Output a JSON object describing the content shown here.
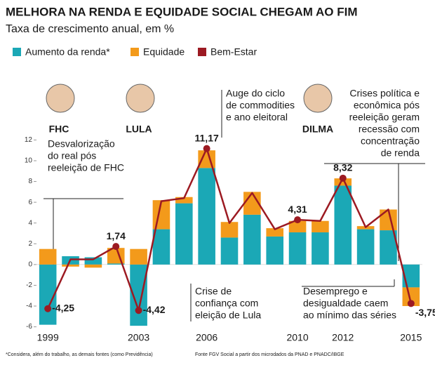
{
  "chart_data": {
    "type": "bar",
    "title": "MELHORA NA RENDA E EQUIDADE SOCIAL CHEGAM AO FIM",
    "subtitle": "Taxa de crescimento anual, em %",
    "categories": [
      "1999",
      null,
      null,
      null,
      "2003",
      null,
      null,
      "2006",
      null,
      null,
      null,
      "2010",
      null,
      "2012",
      null,
      null,
      "2015"
    ],
    "series": [
      {
        "name": "Aumento da renda*",
        "color": "#1ba8b6",
        "values": [
          -5.8,
          0.8,
          0.7,
          0.1,
          -5.9,
          3.4,
          5.9,
          9.3,
          2.6,
          4.8,
          2.7,
          3.1,
          3.1,
          7.6,
          3.4,
          3.3,
          -2.2
        ]
      },
      {
        "name": "Equidade",
        "color": "#f39a1b",
        "values": [
          1.5,
          -0.2,
          -0.3,
          1.5,
          1.5,
          2.8,
          0.6,
          1.7,
          1.5,
          2.2,
          0.8,
          1.1,
          1.1,
          0.7,
          0.3,
          2.0,
          -1.8
        ]
      },
      {
        "name": "Bem-Estar",
        "color": "#9c1a22",
        "type": "line",
        "values": [
          -4.25,
          0.5,
          0.5,
          1.74,
          -4.42,
          6.1,
          6.4,
          11.17,
          4.0,
          6.9,
          3.4,
          4.31,
          4.2,
          8.32,
          3.6,
          5.3,
          -3.75
        ],
        "value_labels": [
          "-4,25",
          null,
          null,
          "1,74",
          "-4,42",
          null,
          null,
          "11,17",
          null,
          null,
          null,
          "4,31",
          null,
          "8,32",
          null,
          null,
          "-3,75"
        ]
      }
    ],
    "ylim": [
      -6.5,
      12.5
    ],
    "yticks": [
      -6,
      -4,
      -2,
      0,
      2,
      4,
      6,
      8,
      10,
      12
    ],
    "presidents": [
      "FHC",
      "LULA",
      "DILMA"
    ],
    "annotations": [
      [
        "Desvalorização",
        "do real pós",
        "reeleição de FHC"
      ],
      [
        "Auge do ciclo",
        "de commodities",
        "e ano eleitoral"
      ],
      [
        "Crises política e",
        "econômica pós",
        "reeleição geram",
        "recessão com",
        "concentração",
        "de renda"
      ],
      [
        "Crise de",
        "confiança com",
        "eleição de Lula"
      ],
      [
        "Desemprego e",
        "desigualdade caem",
        "ao mínimo das séries"
      ]
    ],
    "footnote": "*Considera, além do trabalho, as demais fontes (como Previdência)",
    "source": "Fonte FGV Social a partir dos microdados da PNAD e PNADC/IBGE"
  }
}
